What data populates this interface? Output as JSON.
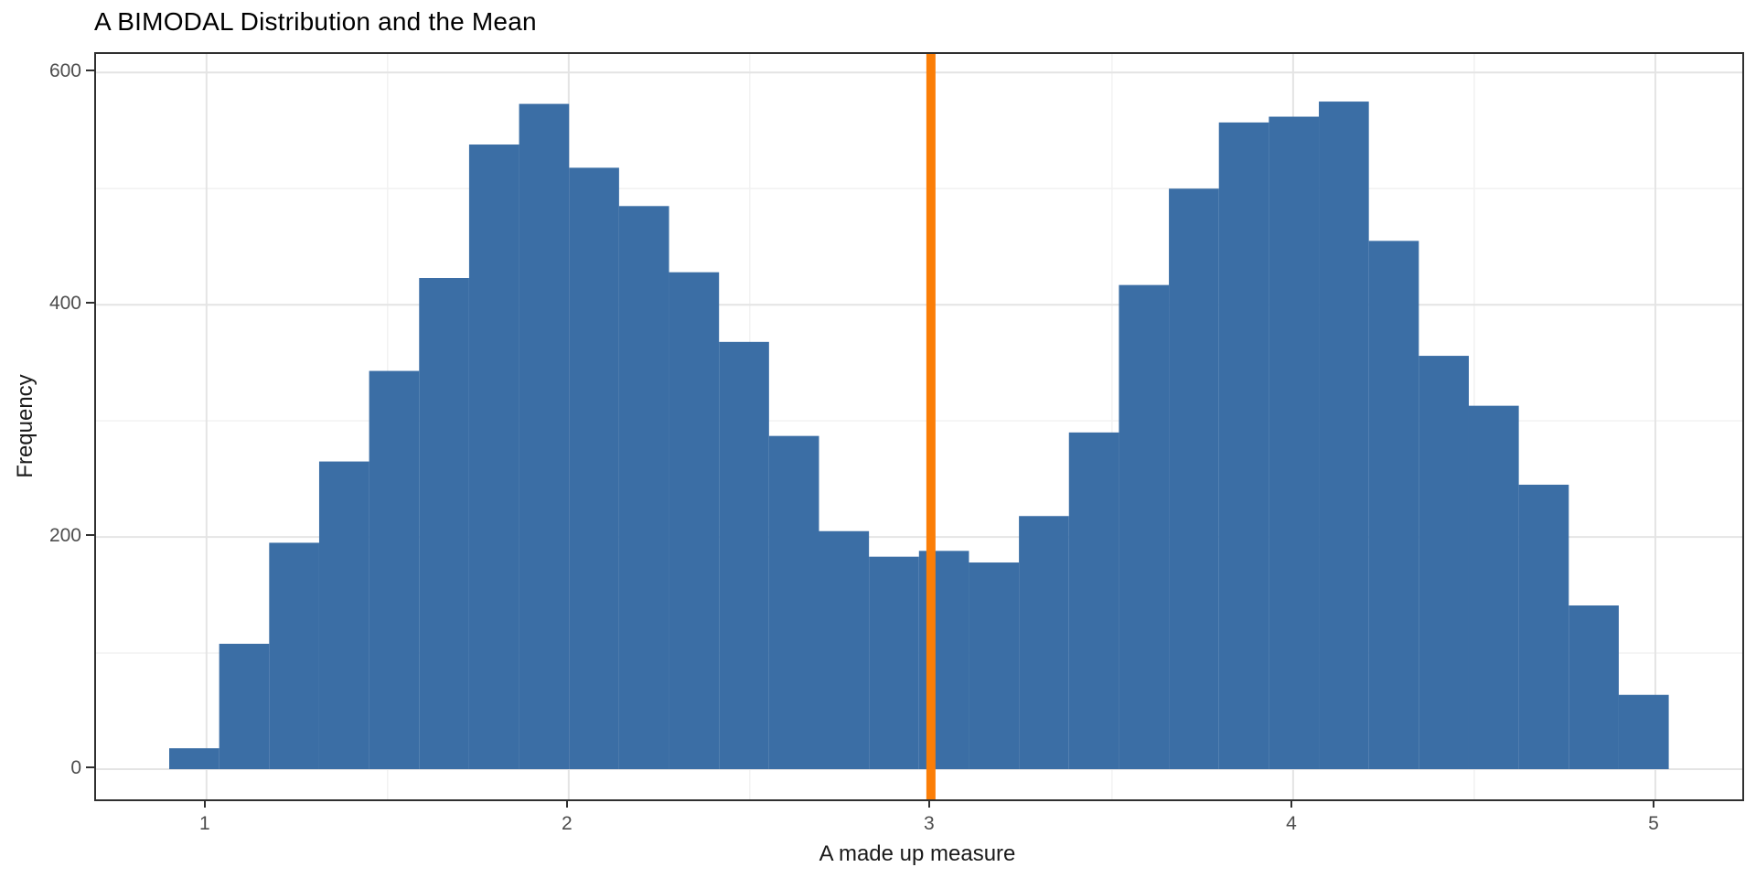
{
  "title": "A BIMODAL Distribution and the Mean",
  "colors": {
    "bar_fill": "#3B6EA5",
    "mean_line": "#FB7E07",
    "grid_major": "#E4E4E4",
    "grid_minor": "#F2F2F2",
    "panel_border": "#303030",
    "tick_mark": "#303030",
    "tick_label": "#4D4D4D",
    "title_text": "#000000"
  },
  "chart_data": {
    "type": "bar",
    "subtype": "histogram",
    "title": "A BIMODAL Distribution and the Mean",
    "xlabel": "A made up measure",
    "ylabel": "Frequency",
    "bin_start": 0.897,
    "bin_width": 0.138,
    "frequencies": [
      18,
      108,
      195,
      265,
      343,
      423,
      538,
      573,
      518,
      485,
      428,
      368,
      287,
      205,
      183,
      188,
      178,
      218,
      290,
      417,
      500,
      557,
      562,
      575,
      455,
      356,
      313,
      245,
      141,
      64
    ],
    "mean_line_x": 3,
    "x_ticks": [
      1,
      2,
      3,
      4,
      5
    ],
    "y_ticks": [
      0,
      200,
      400,
      600
    ],
    "x_minor_gridlines": [
      1.5,
      2.5,
      3.5,
      4.5
    ],
    "y_minor_gridlines": [
      100,
      300,
      500
    ],
    "xlim": [
      0.695,
      5.24
    ],
    "ylim": [
      -26,
      616
    ],
    "grid": true,
    "legend": false,
    "legend_position": "none"
  }
}
